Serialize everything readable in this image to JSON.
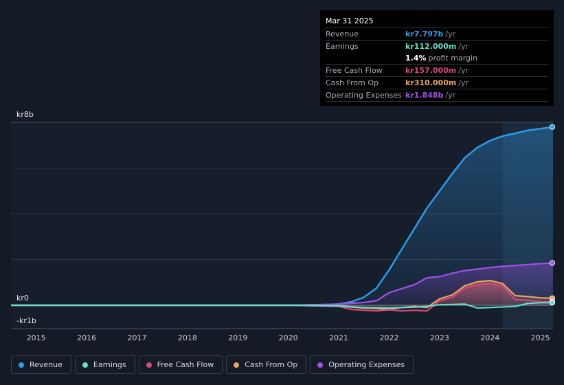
{
  "tooltip": {
    "date": "Mar 31 2025",
    "rows": [
      {
        "label": "Revenue",
        "value": "kr7.797b",
        "unit": "/yr",
        "color": "#2f9be8"
      },
      {
        "label": "Earnings",
        "value": "kr112.000m",
        "unit": "/yr",
        "color": "#5fe0c8"
      },
      {
        "margin_value": "1.4%",
        "margin_text": "profit margin"
      },
      {
        "label": "Free Cash Flow",
        "value": "kr157.000m",
        "unit": "/yr",
        "color": "#d9467a"
      },
      {
        "label": "Cash From Op",
        "value": "kr310.000m",
        "unit": "/yr",
        "color": "#e8a45a"
      },
      {
        "label": "Operating Expenses",
        "value": "kr1.848b",
        "unit": "/yr",
        "color": "#a14fe8"
      }
    ]
  },
  "legend": [
    {
      "label": "Revenue",
      "color": "#2f9be8"
    },
    {
      "label": "Earnings",
      "color": "#5fe0c8"
    },
    {
      "label": "Free Cash Flow",
      "color": "#d9467a"
    },
    {
      "label": "Cash From Op",
      "color": "#e8a45a"
    },
    {
      "label": "Operating Expenses",
      "color": "#a14fe8"
    }
  ],
  "chart_data": {
    "type": "line",
    "y_tick_labels": [
      "kr8b",
      "kr0",
      "-kr1b"
    ],
    "ylim": [
      -1,
      8
    ],
    "y_unit": "billions SEK",
    "x_tick_labels": [
      "2015",
      "2016",
      "2017",
      "2018",
      "2019",
      "2020",
      "2021",
      "2022",
      "2023",
      "2024",
      "2025"
    ],
    "xlim": [
      2014.5,
      2025.25
    ],
    "highlight_range": [
      2024.25,
      2025.25
    ],
    "series": [
      {
        "name": "Revenue",
        "color": "#2f9be8",
        "area": true,
        "x": [
          2014.5,
          2020.0,
          2020.75,
          2021.0,
          2021.25,
          2021.5,
          2021.75,
          2022.0,
          2022.25,
          2022.5,
          2022.75,
          2023.0,
          2023.25,
          2023.5,
          2023.75,
          2024.0,
          2024.25,
          2024.5,
          2024.75,
          2025.0,
          2025.25
        ],
        "y": [
          0.0,
          0.0,
          0.02,
          0.05,
          0.15,
          0.35,
          0.75,
          1.55,
          2.45,
          3.35,
          4.25,
          5.0,
          5.75,
          6.45,
          6.9,
          7.2,
          7.4,
          7.52,
          7.65,
          7.72,
          7.797
        ]
      },
      {
        "name": "Earnings",
        "color": "#5fe0c8",
        "area": false,
        "x": [
          2014.5,
          2020.0,
          2021.0,
          2021.5,
          2022.0,
          2022.5,
          2022.75,
          2023.0,
          2023.5,
          2023.75,
          2024.0,
          2024.5,
          2024.75,
          2025.0,
          2025.25
        ],
        "y": [
          0.0,
          0.0,
          -0.03,
          -0.1,
          -0.12,
          -0.08,
          -0.05,
          0.02,
          0.05,
          -0.12,
          -0.1,
          -0.05,
          0.08,
          0.11,
          0.112
        ]
      },
      {
        "name": "Free Cash Flow",
        "color": "#d9467a",
        "area": true,
        "x": [
          2014.5,
          2020.0,
          2021.0,
          2021.25,
          2021.5,
          2021.75,
          2022.0,
          2022.25,
          2022.5,
          2022.75,
          2023.0,
          2023.25,
          2023.5,
          2023.75,
          2024.0,
          2024.25,
          2024.5,
          2024.75,
          2025.0,
          2025.25
        ],
        "y": [
          0.0,
          0.0,
          -0.05,
          -0.18,
          -0.22,
          -0.25,
          -0.2,
          -0.25,
          -0.22,
          -0.25,
          0.2,
          0.35,
          0.75,
          0.9,
          0.95,
          0.85,
          0.25,
          0.22,
          0.16,
          0.157
        ]
      },
      {
        "name": "Cash From Op",
        "color": "#e8a45a",
        "area": true,
        "x": [
          2014.5,
          2020.0,
          2021.0,
          2021.25,
          2021.5,
          2021.75,
          2022.0,
          2022.25,
          2022.5,
          2022.75,
          2023.0,
          2023.25,
          2023.5,
          2023.75,
          2024.0,
          2024.25,
          2024.5,
          2024.75,
          2025.0,
          2025.25
        ],
        "y": [
          0.0,
          0.0,
          -0.02,
          -0.08,
          -0.12,
          -0.15,
          -0.18,
          -0.1,
          -0.05,
          -0.1,
          0.28,
          0.45,
          0.85,
          1.03,
          1.08,
          0.95,
          0.42,
          0.38,
          0.32,
          0.31
        ]
      },
      {
        "name": "Operating Expenses",
        "color": "#a14fe8",
        "area": true,
        "x": [
          2014.5,
          2020.0,
          2021.0,
          2021.5,
          2021.75,
          2022.0,
          2022.5,
          2022.75,
          2023.0,
          2023.25,
          2023.5,
          2023.75,
          2024.0,
          2024.25,
          2024.5,
          2024.75,
          2025.0,
          2025.25
        ],
        "y": [
          0.0,
          0.0,
          0.05,
          0.12,
          0.2,
          0.55,
          0.9,
          1.2,
          1.25,
          1.4,
          1.52,
          1.58,
          1.65,
          1.7,
          1.74,
          1.78,
          1.82,
          1.848
        ]
      }
    ]
  }
}
